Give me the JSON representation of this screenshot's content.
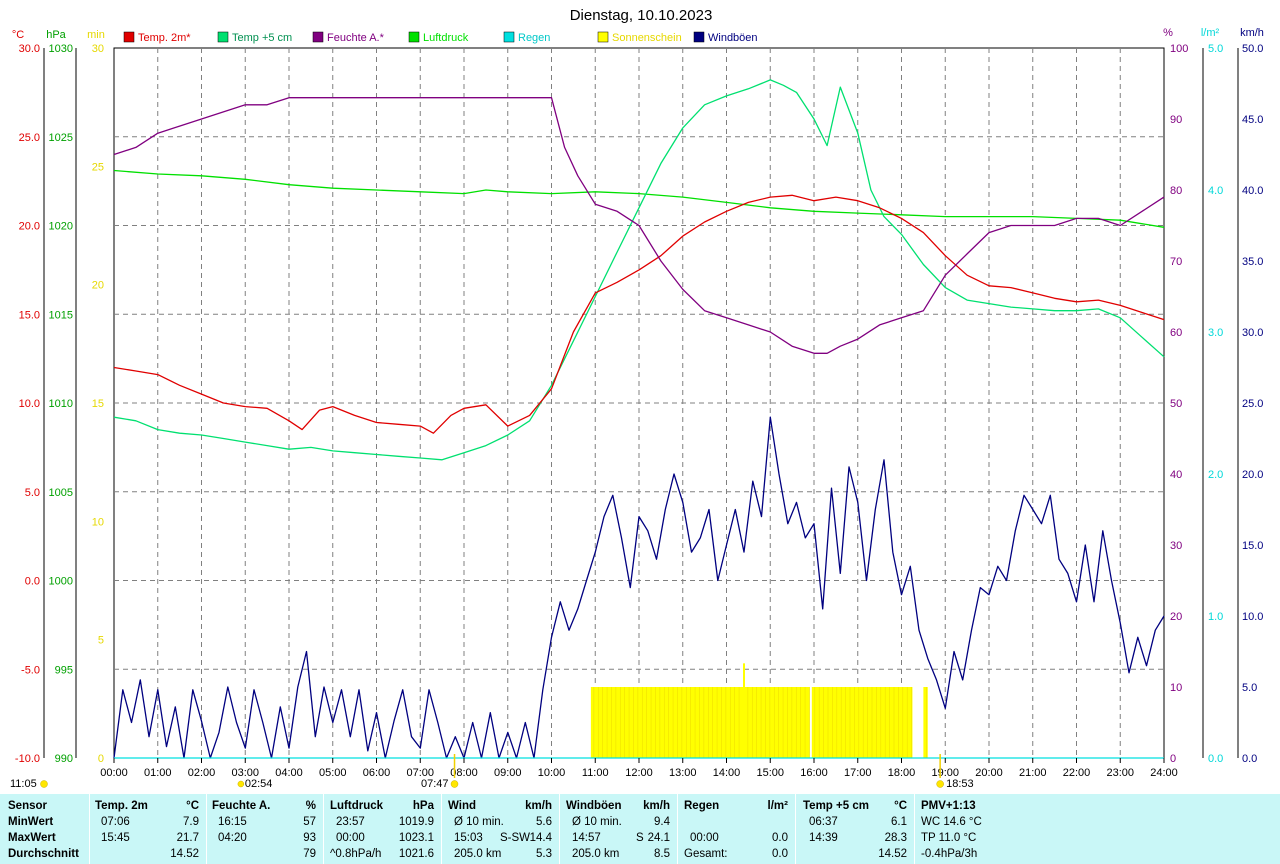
{
  "title": "Dienstag, 10.10.2023",
  "axis_units": {
    "temp": "°C",
    "pressure": "hPa",
    "sunshine": "min",
    "humidity": "%",
    "rain": "l/m²",
    "wind": "km/h"
  },
  "legend": [
    {
      "label": "Temp. 2m*",
      "color": "#e00000"
    },
    {
      "label": "Temp +5 cm",
      "color": "#00e070"
    },
    {
      "label": "Feuchte A.*",
      "color": "#800080"
    },
    {
      "label": "Luftdruck",
      "color": "#00e000"
    },
    {
      "label": "Regen",
      "color": "#00e0e0"
    },
    {
      "label": "Sonnenschein",
      "color": "#ffff00"
    },
    {
      "label": "Windböen",
      "color": "#000080"
    }
  ],
  "sun_times": {
    "sunrise": "07:47",
    "sunset": "18:53",
    "moonrise": "02:54",
    "moonset": "11:05"
  },
  "chart_data": {
    "type": "line",
    "x_ticks": [
      "00:00",
      "01:00",
      "02:00",
      "03:00",
      "04:00",
      "05:00",
      "06:00",
      "07:00",
      "08:00",
      "09:00",
      "10:00",
      "11:00",
      "12:00",
      "13:00",
      "14:00",
      "15:00",
      "16:00",
      "17:00",
      "18:00",
      "19:00",
      "20:00",
      "21:00",
      "22:00",
      "23:00",
      "24:00"
    ],
    "xlim": [
      0,
      24
    ],
    "axes": {
      "temp": {
        "ticks": [
          "30.0",
          "25.0",
          "20.0",
          "15.0",
          "10.0",
          "5.0",
          "0.0",
          "-5.0",
          "-10.0"
        ],
        "lim": [
          -10,
          30
        ]
      },
      "pressure": {
        "ticks": [
          "1030",
          "1025",
          "1020",
          "1015",
          "1010",
          "1005",
          "1000",
          "995",
          "990"
        ],
        "lim": [
          990,
          1030
        ]
      },
      "sunshine": {
        "ticks": [
          "30",
          "25",
          "20",
          "15",
          "10",
          "5",
          "0"
        ],
        "lim": [
          0,
          30
        ]
      },
      "humidity": {
        "ticks": [
          "100",
          "90",
          "80",
          "70",
          "60",
          "50",
          "40",
          "30",
          "20",
          "10",
          "0"
        ],
        "lim": [
          0,
          100
        ]
      },
      "rain": {
        "ticks": [
          "5.0",
          "4.0",
          "3.0",
          "2.0",
          "1.0",
          "0.0"
        ],
        "lim": [
          0,
          5
        ]
      },
      "wind": {
        "ticks": [
          "50.0",
          "45.0",
          "40.0",
          "35.0",
          "30.0",
          "25.0",
          "20.0",
          "15.0",
          "10.0",
          "5.0",
          "0.0"
        ],
        "lim": [
          0,
          50
        ]
      }
    },
    "grid": true,
    "series": [
      {
        "name": "Temp. 2m*",
        "axis": "temp",
        "color": "#e00000",
        "x": [
          0,
          0.5,
          1,
          1.5,
          2,
          2.5,
          3,
          3.5,
          4,
          4.3,
          4.7,
          5,
          5.5,
          6,
          6.5,
          7,
          7.3,
          7.7,
          8,
          8.5,
          9,
          9.5,
          10,
          10.5,
          11,
          11.5,
          12,
          12.5,
          13,
          13.5,
          14,
          14.5,
          15,
          15.5,
          16,
          16.5,
          17,
          17.5,
          18,
          18.5,
          19,
          19.5,
          20,
          20.5,
          21,
          21.5,
          22,
          22.5,
          23,
          23.5,
          24
        ],
        "y": [
          12.0,
          11.8,
          11.6,
          11.0,
          10.5,
          10.0,
          9.8,
          9.7,
          9.0,
          8.5,
          9.6,
          9.8,
          9.3,
          8.9,
          8.8,
          8.7,
          8.3,
          9.3,
          9.7,
          9.9,
          8.7,
          9.3,
          10.8,
          14.0,
          16.2,
          16.8,
          17.5,
          18.3,
          19.4,
          20.2,
          20.8,
          21.3,
          21.6,
          21.7,
          21.4,
          21.6,
          21.4,
          21.0,
          20.4,
          19.6,
          18.3,
          17.2,
          16.6,
          16.5,
          16.2,
          15.9,
          15.7,
          15.8,
          15.5,
          15.1,
          14.7
        ]
      },
      {
        "name": "Temp +5 cm",
        "axis": "temp",
        "color": "#00e070",
        "x": [
          0,
          0.5,
          1,
          1.5,
          2,
          2.5,
          3,
          3.5,
          4,
          4.5,
          5,
          5.5,
          6,
          6.5,
          7,
          7.5,
          8,
          8.5,
          9,
          9.5,
          10,
          10.5,
          11,
          11.5,
          12,
          12.5,
          13,
          13.5,
          14,
          14.5,
          15,
          15.3,
          15.6,
          16,
          16.3,
          16.6,
          17,
          17.3,
          17.6,
          18,
          18.5,
          19,
          19.5,
          20,
          20.5,
          21,
          21.5,
          22,
          22.5,
          23,
          23.5,
          24
        ],
        "y": [
          9.2,
          9.0,
          8.5,
          8.3,
          8.2,
          8.0,
          7.8,
          7.6,
          7.4,
          7.5,
          7.3,
          7.2,
          7.1,
          7.0,
          6.9,
          6.8,
          7.2,
          7.6,
          8.2,
          9.0,
          11.0,
          13.5,
          16.0,
          18.5,
          21.0,
          23.5,
          25.5,
          26.8,
          27.3,
          27.7,
          28.2,
          27.9,
          27.5,
          26.0,
          24.5,
          27.8,
          25.2,
          22.0,
          20.5,
          19.5,
          17.8,
          16.5,
          15.8,
          15.6,
          15.4,
          15.3,
          15.2,
          15.2,
          15.3,
          14.8,
          13.7,
          12.6
        ]
      },
      {
        "name": "Feuchte A.*",
        "axis": "humidity",
        "color": "#800080",
        "x": [
          0,
          0.5,
          1,
          1.5,
          2,
          2.5,
          3,
          3.5,
          4,
          4.5,
          5,
          5.5,
          6,
          6.5,
          7,
          7.5,
          8,
          8.5,
          9,
          9.5,
          10,
          10.3,
          10.6,
          11,
          11.5,
          12,
          12.5,
          13,
          13.5,
          14,
          14.5,
          15,
          15.5,
          16,
          16.3,
          16.6,
          17,
          17.5,
          18,
          18.5,
          19,
          19.5,
          20,
          20.5,
          21,
          21.5,
          22,
          22.5,
          23,
          23.5,
          24
        ],
        "y": [
          85,
          86,
          88,
          89,
          90,
          91,
          92,
          92,
          93,
          93,
          93,
          93,
          93,
          93,
          93,
          93,
          93,
          93,
          93,
          93,
          93,
          86,
          82,
          78,
          77,
          75,
          70,
          66,
          63,
          62,
          61,
          60,
          58,
          57,
          57,
          58,
          59,
          61,
          62,
          63,
          68,
          71,
          74,
          75,
          75,
          75,
          76,
          76,
          75,
          77,
          79
        ]
      },
      {
        "name": "Luftdruck",
        "axis": "pressure",
        "color": "#00e000",
        "x": [
          0,
          1,
          2,
          3,
          4,
          5,
          6,
          7,
          8,
          8.5,
          9,
          10,
          11,
          12,
          13,
          14,
          15,
          16,
          17,
          18,
          19,
          20,
          21,
          22,
          23,
          24
        ],
        "y": [
          1023.1,
          1022.9,
          1022.8,
          1022.6,
          1022.3,
          1022.1,
          1022.0,
          1021.9,
          1021.8,
          1022.0,
          1021.9,
          1021.8,
          1021.9,
          1021.8,
          1021.6,
          1021.3,
          1021.0,
          1020.8,
          1020.7,
          1020.6,
          1020.5,
          1020.5,
          1020.5,
          1020.4,
          1020.3,
          1019.9
        ]
      },
      {
        "name": "Regen",
        "axis": "rain",
        "color": "#00e0e0",
        "x": [
          0,
          24
        ],
        "y": [
          0,
          0
        ]
      },
      {
        "name": "Windböen",
        "axis": "wind",
        "color": "#000080",
        "x": [
          0,
          0.2,
          0.4,
          0.6,
          0.8,
          1,
          1.2,
          1.4,
          1.6,
          1.8,
          2,
          2.2,
          2.4,
          2.6,
          2.8,
          3,
          3.2,
          3.4,
          3.6,
          3.8,
          4,
          4.2,
          4.4,
          4.6,
          4.8,
          5,
          5.2,
          5.4,
          5.6,
          5.8,
          6,
          6.2,
          6.4,
          6.6,
          6.8,
          7,
          7.2,
          7.4,
          7.6,
          7.8,
          8,
          8.2,
          8.4,
          8.6,
          8.8,
          9,
          9.2,
          9.4,
          9.6,
          9.8,
          10,
          10.2,
          10.4,
          10.6,
          10.8,
          11,
          11.2,
          11.4,
          11.6,
          11.8,
          12,
          12.2,
          12.4,
          12.6,
          12.8,
          13,
          13.2,
          13.4,
          13.6,
          13.8,
          14,
          14.2,
          14.4,
          14.6,
          14.8,
          15,
          15.2,
          15.4,
          15.6,
          15.8,
          16,
          16.2,
          16.4,
          16.6,
          16.8,
          17,
          17.2,
          17.4,
          17.6,
          17.8,
          18,
          18.2,
          18.4,
          18.6,
          18.8,
          19,
          19.2,
          19.4,
          19.6,
          19.8,
          20,
          20.2,
          20.4,
          20.6,
          20.8,
          21,
          21.2,
          21.4,
          21.6,
          21.8,
          22,
          22.2,
          22.4,
          22.6,
          22.8,
          23,
          23.2,
          23.4,
          23.6,
          23.8,
          24
        ],
        "y": [
          0,
          4.8,
          2.5,
          5.5,
          1.5,
          4.8,
          0.8,
          3.6,
          0,
          4.8,
          2.6,
          0,
          1.8,
          5.0,
          2.5,
          0.7,
          4.8,
          2.5,
          0,
          3.6,
          0.7,
          5.0,
          7.5,
          1.5,
          5.0,
          2.5,
          4.8,
          1.5,
          4.8,
          0.5,
          3.2,
          0,
          2.6,
          4.8,
          1.5,
          0.7,
          4.8,
          2.5,
          0,
          1.5,
          0,
          2.5,
          0,
          3.2,
          0,
          1.8,
          0,
          2.5,
          0,
          4.8,
          8.5,
          11.0,
          9.0,
          10.5,
          12.5,
          14.5,
          17.0,
          18.5,
          15.5,
          12.0,
          17.0,
          16.0,
          14.0,
          17.5,
          20.0,
          18.0,
          14.5,
          15.5,
          17.5,
          12.5,
          15.0,
          17.5,
          14.5,
          19.5,
          17.0,
          24.0,
          20.0,
          16.5,
          18.0,
          15.5,
          16.5,
          10.5,
          19.0,
          13.0,
          20.5,
          18.0,
          12.5,
          17.5,
          21.0,
          14.5,
          11.5,
          13.5,
          9.0,
          7.0,
          5.5,
          3.5,
          7.5,
          5.5,
          9.0,
          12.0,
          11.5,
          13.5,
          12.5,
          16.0,
          18.5,
          17.5,
          16.5,
          18.5,
          14.0,
          13.0,
          11.0,
          15.0,
          11.0,
          16.0,
          12.5,
          9.5,
          6.0,
          8.5,
          6.5,
          9.0,
          10.0
        ]
      },
      {
        "name": "Sonnenschein",
        "axis": "sunshine",
        "type": "bar",
        "color": "#ffff00",
        "intervals": [
          [
            10.9,
            15.9
          ],
          [
            15.95,
            18.25
          ],
          [
            18.5,
            18.6
          ]
        ],
        "value": 3.0,
        "peak": {
          "x": 14.4,
          "y": 4.0
        }
      }
    ]
  },
  "stats": {
    "headers": {
      "sensor": "Sensor",
      "temp": "Temp. 2m",
      "temp_unit": "°C",
      "hum": "Feuchte A.",
      "hum_unit": "%",
      "press": "Luftdruck",
      "press_unit": "hPa",
      "wind": "Wind",
      "wind_unit": "km/h",
      "gust": "Windböen",
      "gust_unit": "km/h",
      "rain": "Regen",
      "rain_unit": "l/m²",
      "t5": "Temp +5 cm",
      "t5_unit": "°C",
      "pmv": "PMV+1:13"
    },
    "row_labels": [
      "MinWert",
      "MaxWert",
      "Durchschnitt"
    ],
    "temp": [
      [
        "07:06",
        "7.9"
      ],
      [
        "15:45",
        "21.7"
      ],
      [
        "",
        "14.52"
      ]
    ],
    "hum": [
      [
        "16:15",
        "57"
      ],
      [
        "04:20",
        "93"
      ],
      [
        "",
        "79"
      ]
    ],
    "press": [
      [
        "23:57",
        "1019.9"
      ],
      [
        "00:00",
        "1023.1"
      ],
      [
        "^0.8hPa/h",
        "1021.6"
      ]
    ],
    "wind": [
      [
        "Ø 10 min.",
        "",
        "5.6"
      ],
      [
        "15:03",
        "S-SW",
        "14.4"
      ],
      [
        "205.0 km",
        "",
        "5.3"
      ]
    ],
    "gust": [
      [
        "Ø 10 min.",
        "",
        "9.4"
      ],
      [
        "14:57",
        "S",
        "24.1"
      ],
      [
        "205.0 km",
        "",
        "8.5"
      ]
    ],
    "rain": [
      [
        "",
        ""
      ],
      [
        "00:00",
        "0.0"
      ],
      [
        "Gesamt:",
        "0.0"
      ]
    ],
    "t5": [
      [
        "06:37",
        "6.1"
      ],
      [
        "14:39",
        "28.3"
      ],
      [
        "",
        "14.52"
      ]
    ],
    "pmv": [
      "WC 14.6 °C",
      "TP 11.0 °C",
      "-0.4hPa/3h"
    ]
  }
}
